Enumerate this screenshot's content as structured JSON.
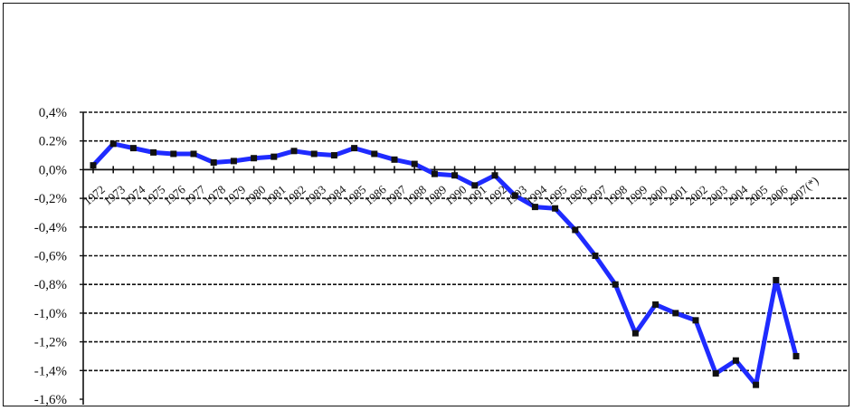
{
  "chart_data": {
    "type": "line",
    "title": "",
    "xlabel": "",
    "ylabel": "",
    "ylim": [
      -1.6,
      0.4
    ],
    "yticks": [
      {
        "value": 0.4,
        "label": "0,4%"
      },
      {
        "value": 0.2,
        "label": "0.2%"
      },
      {
        "value": 0.0,
        "label": "0,0%"
      },
      {
        "value": -0.2,
        "label": "-0,2%"
      },
      {
        "value": -0.4,
        "label": "-0,4%"
      },
      {
        "value": -0.6,
        "label": "-0,6%"
      },
      {
        "value": -0.8,
        "label": "-0,8%"
      },
      {
        "value": -1.0,
        "label": "-1,0%"
      },
      {
        "value": -1.2,
        "label": "-1,2%"
      },
      {
        "value": -1.4,
        "label": "-1,4%"
      },
      {
        "value": -1.6,
        "label": "-1,6%"
      }
    ],
    "grid": true,
    "legend": "none",
    "categories": [
      "1972",
      "1973",
      "1974",
      "1975",
      "1976",
      "1977",
      "1978",
      "1979",
      "1980",
      "1981",
      "1982",
      "1983",
      "1984",
      "1985",
      "1986",
      "1987",
      "1988",
      "1989",
      "1990",
      "1991",
      "1992",
      "1993",
      "1994",
      "1995",
      "1996",
      "1997",
      "1998",
      "1999",
      "2000",
      "2001",
      "2002",
      "2003",
      "2004",
      "2005",
      "2006",
      "2007(*)"
    ],
    "series": [
      {
        "color": "#1f2bff",
        "values": [
          0.03,
          0.18,
          0.15,
          0.12,
          0.11,
          0.11,
          0.05,
          0.06,
          0.08,
          0.09,
          0.13,
          0.11,
          0.1,
          0.15,
          0.11,
          0.07,
          0.04,
          -0.03,
          -0.04,
          -0.11,
          -0.04,
          -0.18,
          -0.26,
          -0.27,
          -0.42,
          -0.6,
          -0.8,
          -1.14,
          -0.94,
          -1.0,
          -1.05,
          -1.42,
          -1.33,
          -1.5,
          -0.77,
          -1.3
        ]
      }
    ]
  },
  "colors": {
    "line": "#1f2bff",
    "marker": "#111111",
    "grid": "#111111"
  }
}
